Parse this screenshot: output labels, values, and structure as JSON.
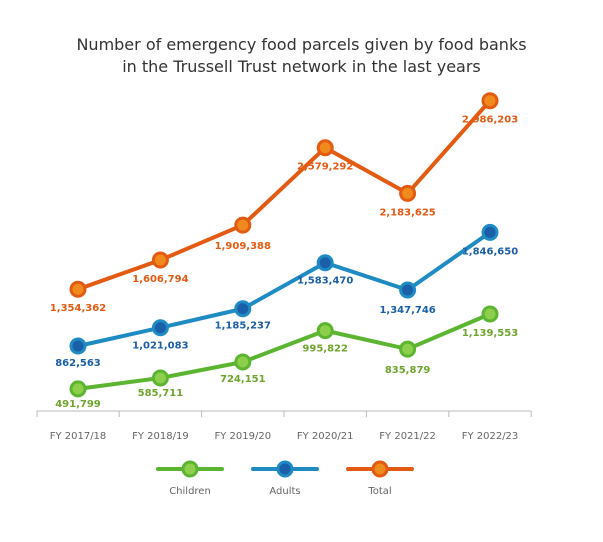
{
  "chart_data": {
    "type": "line",
    "title_lines": [
      "Number of emergency food parcels given by food banks",
      "in the Trussell Trust network in the last years"
    ],
    "categories": [
      "FY 2017/18",
      "FY 2018/19",
      "FY 2019/20",
      "FY 2020/21",
      "FY 2021/22",
      "FY 2022/23"
    ],
    "ylim": [
      300000,
      3200000
    ],
    "grid": false,
    "legend_position": "bottom",
    "series": [
      {
        "name": "Children",
        "color": "#5cb531",
        "fill": "#8dcf4b",
        "values": [
          491799,
          585711,
          724151,
          995822,
          835879,
          1139553
        ],
        "labels": [
          "491,799",
          "585,711",
          "724,151",
          "995,822",
          "835,879",
          "1,139,553"
        ]
      },
      {
        "name": "Adults",
        "color": "#1e8bc3",
        "fill": "#1b5fa8",
        "values": [
          862563,
          1021083,
          1185237,
          1583470,
          1347746,
          1846650
        ],
        "labels": [
          "862,563",
          "1,021,083",
          "1,185,237",
          "1,583,470",
          "1,347,746",
          "1,846,650"
        ]
      },
      {
        "name": "Total",
        "color": "#e35a12",
        "fill": "#f08a1f",
        "values": [
          1354362,
          1606794,
          1909388,
          2579292,
          2183625,
          2986203
        ],
        "labels": [
          "1,354,362",
          "1,606,794",
          "1,909,388",
          "2,579,292",
          "2,183,625",
          "2,986,203"
        ]
      }
    ],
    "label_colors": {
      "Children": "#6fa52e",
      "Adults": "#1b5fa8",
      "Total": "#e35a12"
    }
  }
}
